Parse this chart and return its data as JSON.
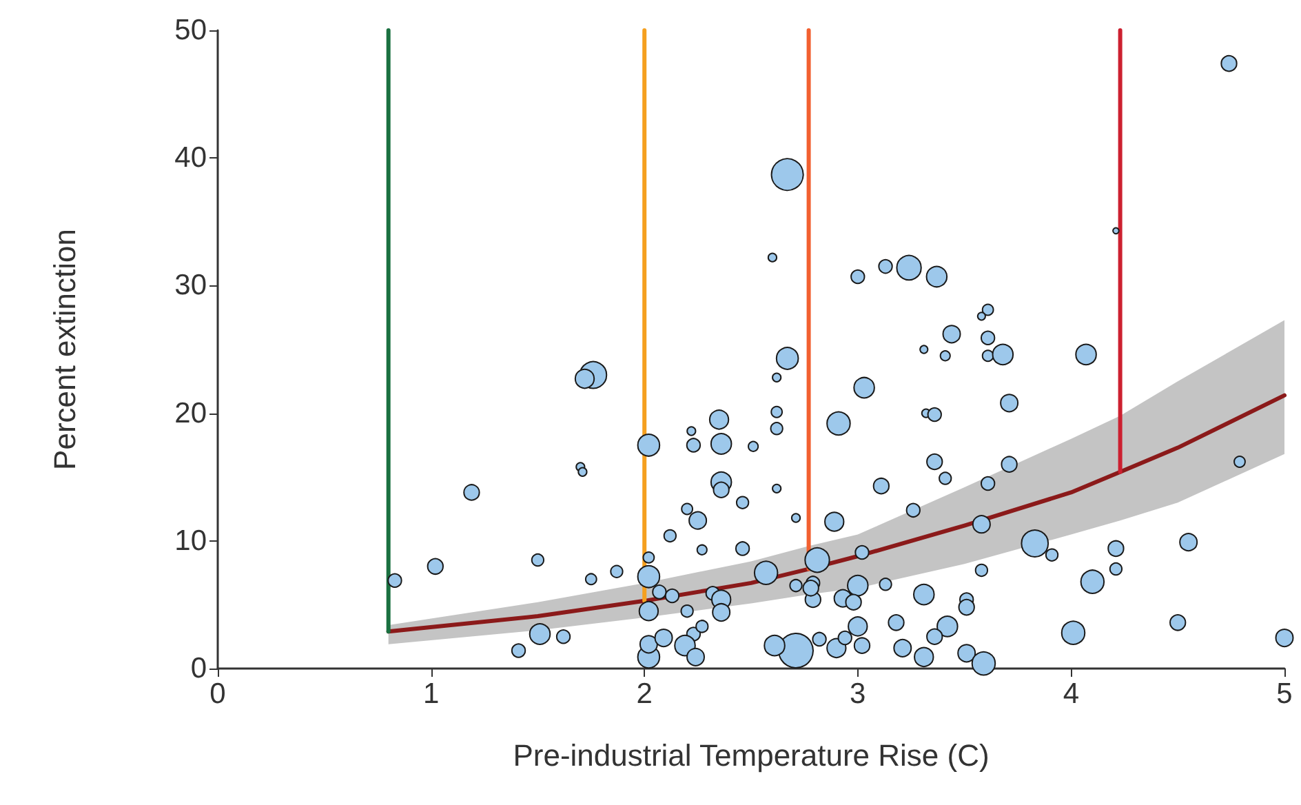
{
  "chart_data": {
    "type": "bubble",
    "xlabel": "Pre-industrial Temperature Rise (C)",
    "ylabel": "Percent extinction",
    "xlim": [
      0,
      5
    ],
    "xticks": [
      0,
      1,
      2,
      3,
      4,
      5
    ],
    "ylim": [
      0,
      50
    ],
    "yticks": [
      0,
      10,
      20,
      30,
      40,
      50
    ],
    "grid": false,
    "series": [
      {
        "color": "#9dc8eb",
        "marker": "circle",
        "x": [
          0.83,
          1.02,
          1.19,
          1.41,
          1.51,
          1.62,
          1.5,
          1.7,
          1.71,
          1.76,
          1.72,
          1.75,
          1.87,
          2.02,
          2.02,
          2.02,
          2.02,
          2.02,
          2.02,
          2.09,
          2.12,
          2.07,
          2.13,
          2.2,
          2.25,
          2.22,
          2.23,
          2.35,
          2.36,
          2.36,
          2.36,
          2.46,
          2.51,
          2.46,
          2.27,
          2.2,
          2.23,
          2.27,
          2.19,
          2.24,
          2.32,
          2.36,
          2.36,
          2.57,
          2.62,
          2.62,
          2.62,
          2.62,
          2.71,
          2.67,
          2.67,
          2.6,
          2.71,
          2.61,
          2.79,
          2.79,
          2.81,
          3.03,
          2.91,
          3.31,
          3.41,
          3.61,
          3.68,
          4.07,
          3.71,
          3.32,
          3.36,
          3.36,
          3.41,
          3.11,
          3.71,
          3.61,
          2.89,
          3.26,
          3.58,
          4.79,
          3.02,
          3.83,
          3.91,
          4.21,
          4.21,
          4.55,
          4.1,
          3.58,
          2.71,
          2.78,
          3.0,
          2.93,
          2.98,
          3.13,
          3.31,
          3.51,
          3.51,
          3.0,
          3.18,
          3.42,
          3.36,
          2.9,
          2.82,
          2.94,
          3.02,
          3.21,
          3.31,
          3.51,
          3.59,
          4.01,
          4.5,
          5.0,
          4.74,
          4.21,
          3.0,
          3.13,
          3.24,
          3.37,
          3.61,
          3.58,
          3.44,
          3.61
        ],
        "values": [
          6.9,
          8.0,
          13.8,
          1.4,
          2.7,
          2.5,
          8.5,
          15.8,
          15.4,
          23.0,
          22.7,
          7.0,
          7.6,
          17.5,
          8.7,
          7.2,
          4.5,
          0.9,
          1.9,
          2.4,
          10.4,
          6.0,
          5.7,
          12.5,
          11.6,
          18.6,
          17.5,
          19.5,
          17.6,
          14.6,
          14.0,
          13.0,
          17.4,
          9.4,
          9.3,
          4.5,
          2.7,
          3.3,
          1.8,
          0.9,
          5.9,
          5.4,
          4.4,
          7.5,
          22.8,
          20.1,
          18.8,
          14.1,
          11.8,
          24.3,
          38.7,
          32.2,
          1.4,
          1.8,
          6.7,
          5.4,
          8.5,
          22.0,
          19.2,
          25.0,
          24.5,
          24.5,
          24.6,
          24.6,
          20.8,
          20.0,
          19.9,
          16.2,
          14.9,
          14.3,
          16.0,
          14.5,
          11.5,
          12.4,
          11.3,
          16.2,
          9.1,
          9.8,
          8.9,
          9.4,
          7.8,
          9.9,
          6.8,
          7.7,
          6.5,
          6.3,
          6.5,
          5.5,
          5.2,
          6.6,
          5.8,
          5.4,
          4.8,
          3.3,
          3.6,
          3.3,
          2.5,
          1.6,
          2.3,
          2.4,
          1.8,
          1.6,
          0.9,
          1.2,
          0.4,
          2.8,
          3.6,
          2.4,
          47.4,
          34.3,
          30.7,
          31.5,
          31.4,
          30.7,
          28.1,
          27.6,
          26.2,
          25.9
        ],
        "sizes": [
          0.15,
          0.2,
          0.2,
          0.15,
          0.35,
          0.15,
          0.12,
          0.06,
          0.06,
          0.6,
          0.3,
          0.1,
          0.12,
          0.4,
          0.1,
          0.4,
          0.3,
          0.4,
          0.25,
          0.25,
          0.12,
          0.15,
          0.15,
          0.1,
          0.25,
          0.06,
          0.15,
          0.3,
          0.35,
          0.35,
          0.2,
          0.12,
          0.08,
          0.15,
          0.08,
          0.12,
          0.15,
          0.12,
          0.35,
          0.25,
          0.15,
          0.3,
          0.25,
          0.45,
          0.06,
          0.1,
          0.12,
          0.06,
          0.06,
          0.4,
          0.85,
          0.06,
          1.0,
          0.35,
          0.15,
          0.2,
          0.5,
          0.35,
          0.45,
          0.05,
          0.08,
          0.1,
          0.35,
          0.35,
          0.25,
          0.06,
          0.15,
          0.2,
          0.12,
          0.2,
          0.2,
          0.15,
          0.3,
          0.15,
          0.25,
          0.1,
          0.15,
          0.6,
          0.12,
          0.2,
          0.12,
          0.25,
          0.45,
          0.12,
          0.12,
          0.2,
          0.35,
          0.25,
          0.2,
          0.12,
          0.35,
          0.15,
          0.2,
          0.3,
          0.2,
          0.35,
          0.2,
          0.3,
          0.15,
          0.15,
          0.2,
          0.25,
          0.3,
          0.25,
          0.45,
          0.45,
          0.2,
          0.25,
          0.2,
          0.03,
          0.15,
          0.15,
          0.5,
          0.35,
          0.1,
          0.05,
          0.25,
          0.15
        ]
      },
      {
        "type": "line",
        "color": "#8b1a1a",
        "marker": "none",
        "line_style": "solid",
        "x": [
          0.8,
          1.5,
          2,
          2.5,
          2.77,
          3,
          3.5,
          4,
          4.23,
          4.5,
          5
        ],
        "values": [
          2.9,
          4.1,
          5.3,
          6.7,
          7.8,
          8.8,
          11.2,
          13.8,
          15.4,
          17.3,
          21.4
        ],
        "lower": [
          1.9,
          3.0,
          4.0,
          5.1,
          5.8,
          6.3,
          8.2,
          10.5,
          11.6,
          13.0,
          16.8
        ],
        "upper": [
          3.4,
          5.2,
          6.7,
          8.4,
          9.6,
          10.5,
          14.2,
          18.0,
          19.8,
          22.5,
          27.3
        ]
      },
      {
        "type": "line",
        "color": "#1a7040",
        "marker": "none",
        "line_style": "solid",
        "x": [
          0.8,
          0.8
        ],
        "values": [
          2.9,
          50
        ]
      },
      {
        "type": "line",
        "color": "#f5a020",
        "marker": "none",
        "line_style": "solid",
        "x": [
          2.0,
          2.0
        ],
        "values": [
          5.3,
          50
        ]
      },
      {
        "type": "line",
        "color": "#f26030",
        "marker": "none",
        "line_style": "solid",
        "x": [
          2.77,
          2.77
        ],
        "values": [
          7.8,
          50
        ]
      },
      {
        "type": "line",
        "color": "#cc2030",
        "marker": "none",
        "line_style": "solid",
        "x": [
          4.23,
          4.23
        ],
        "values": [
          15.4,
          50
        ]
      }
    ]
  }
}
